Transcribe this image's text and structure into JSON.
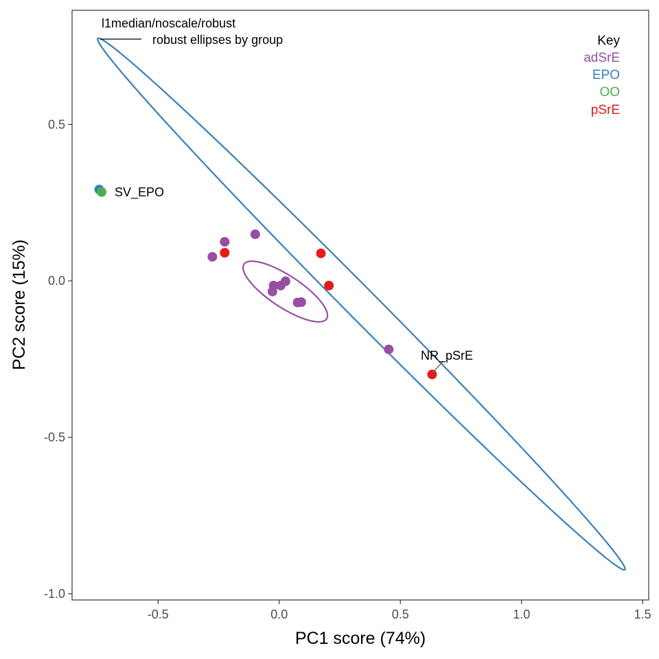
{
  "chart_data": {
    "type": "scatter",
    "xlabel": "PC1 score (74%)",
    "ylabel": "PC2 score (15%)",
    "xlim": [
      -0.855,
      1.525
    ],
    "ylim": [
      -1.02,
      0.865
    ],
    "x_ticks": [
      -0.5,
      0.0,
      0.5,
      1.0,
      1.5
    ],
    "x_tick_labels": [
      "-0.5",
      "0.0",
      "0.5",
      "1.0",
      "1.5"
    ],
    "y_ticks": [
      -1.0,
      -0.5,
      0.0,
      0.5
    ],
    "y_tick_labels": [
      "-1.0",
      "-0.5",
      "0.0",
      "0.5"
    ],
    "grid": false,
    "legend": {
      "title": "Key",
      "position": "top-right",
      "entries": [
        {
          "label": "adSrE",
          "color": "#984ea3"
        },
        {
          "label": "EPO",
          "color": "#377eb8"
        },
        {
          "label": "OO",
          "color": "#4daf4a"
        },
        {
          "label": "pSrE",
          "color": "#e41a1c"
        }
      ]
    },
    "series": [
      {
        "name": "adSrE",
        "color": "#984ea3",
        "points": [
          [
            -0.225,
            0.125
          ],
          [
            -0.276,
            0.077
          ],
          [
            -0.099,
            0.149
          ],
          [
            -0.028,
            -0.034
          ],
          [
            -0.023,
            -0.015
          ],
          [
            0.006,
            -0.015
          ],
          [
            0.026,
            -0.001
          ],
          [
            0.076,
            -0.069
          ],
          [
            0.091,
            -0.068
          ],
          [
            0.452,
            -0.219
          ]
        ]
      },
      {
        "name": "pSrE",
        "color": "#e41a1c",
        "points": [
          [
            -0.225,
            0.09
          ],
          [
            0.172,
            0.088
          ],
          [
            0.205,
            -0.015
          ],
          [
            0.631,
            -0.299
          ]
        ]
      },
      {
        "name": "EPO",
        "color": "#377eb8",
        "points": [
          [
            -0.743,
            0.292
          ]
        ]
      },
      {
        "name": "OO",
        "color": "#4daf4a",
        "points": [
          [
            -0.733,
            0.284
          ]
        ]
      }
    ],
    "ellipses": [
      {
        "group": "EPO",
        "color": "#377eb8",
        "cx": 0.339,
        "cy": -0.074,
        "a": 1.38,
        "b": 0.055,
        "angle_deg": -37.95
      },
      {
        "group": "adSrE",
        "color": "#984ea3",
        "cx": 0.025,
        "cy": -0.034,
        "a": 0.192,
        "b": 0.054,
        "angle_deg": -25.9
      }
    ],
    "annotations": {
      "title_line1": "l1median/noscale/robust",
      "title_line2": "robust ellipses by group",
      "point_labels": [
        {
          "text": "SV_EPO",
          "x": -0.743,
          "y": 0.292
        },
        {
          "text": "NR_pSrE",
          "x": 0.631,
          "y": -0.299
        }
      ]
    }
  }
}
